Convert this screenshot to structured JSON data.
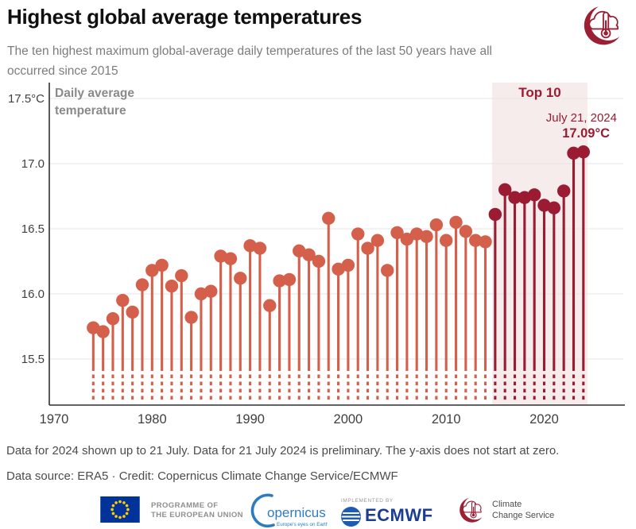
{
  "header": {
    "title": "Highest global average temperatures",
    "subtitle": "The ten highest maximum global-average daily temperatures of the last 50 years have all occurred since 2015"
  },
  "chart_data": {
    "type": "lollipop",
    "y_axis_title": "Daily average temperature",
    "y_unit": "°C",
    "years": [
      1974,
      1975,
      1976,
      1977,
      1978,
      1979,
      1980,
      1981,
      1982,
      1983,
      1984,
      1985,
      1986,
      1987,
      1988,
      1989,
      1990,
      1991,
      1992,
      1993,
      1994,
      1995,
      1996,
      1997,
      1998,
      1999,
      2000,
      2001,
      2002,
      2003,
      2004,
      2005,
      2006,
      2007,
      2008,
      2009,
      2010,
      2011,
      2012,
      2013,
      2014,
      2015,
      2016,
      2017,
      2018,
      2019,
      2020,
      2021,
      2022,
      2023,
      2024
    ],
    "values": [
      15.74,
      15.71,
      15.81,
      15.95,
      15.86,
      16.07,
      16.18,
      16.22,
      16.06,
      16.14,
      15.82,
      16.0,
      16.02,
      16.29,
      16.27,
      16.12,
      16.37,
      16.35,
      15.91,
      16.1,
      16.11,
      16.33,
      16.3,
      16.25,
      16.58,
      16.19,
      16.22,
      16.46,
      16.35,
      16.41,
      16.18,
      16.47,
      16.42,
      16.46,
      16.44,
      16.53,
      16.41,
      16.55,
      16.48,
      16.41,
      16.4,
      16.61,
      16.8,
      16.74,
      16.74,
      16.76,
      16.68,
      16.66,
      16.79,
      17.08,
      17.09
    ],
    "highlight_from_year": 2015,
    "yticks": {
      "values": [
        17.5,
        17.0,
        16.5,
        16.0,
        15.5
      ],
      "labels": [
        "17.5°C",
        "17.0",
        "16.5",
        "16.0",
        "15.5"
      ]
    },
    "xticks": {
      "values": [
        1970,
        1980,
        1990,
        2000,
        2010,
        2020
      ],
      "labels": [
        "1970",
        "1980",
        "1990",
        "2000",
        "2010",
        "2020"
      ]
    },
    "axis_break": true,
    "grid": true,
    "top10": {
      "label": "Top 10",
      "start_year": 2015,
      "end_year": 2024
    },
    "annotation": {
      "date": "July 21, 2024",
      "value": "17.09°C"
    },
    "colors": {
      "normal": "#d4604b",
      "top10": "#9b1b33",
      "band": "#f7ecec",
      "grid": "#e4e4e4",
      "axis": "#2f2f2f",
      "tick_text": "#3f3f3f"
    }
  },
  "footer": {
    "note": "Data for 2024 shown up to 21 July. Data for 21 July 2024 is preliminary. The y-axis does not start at zero.",
    "source": "Data source: ERA5 · Credit: Copernicus Climate Change Service/ECMWF"
  },
  "logos": {
    "eu": {
      "line1": "PROGRAMME OF",
      "line2": "THE EUROPEAN UNION"
    },
    "copernicus": {
      "text": "opernicus",
      "tagline": "Europe's eyes on Earth"
    },
    "ecmwf": {
      "implemented_by": "IMPLEMENTED BY",
      "name": "ECMWF"
    },
    "c3s": {
      "line1": "Climate",
      "line2": "Change Service"
    }
  }
}
